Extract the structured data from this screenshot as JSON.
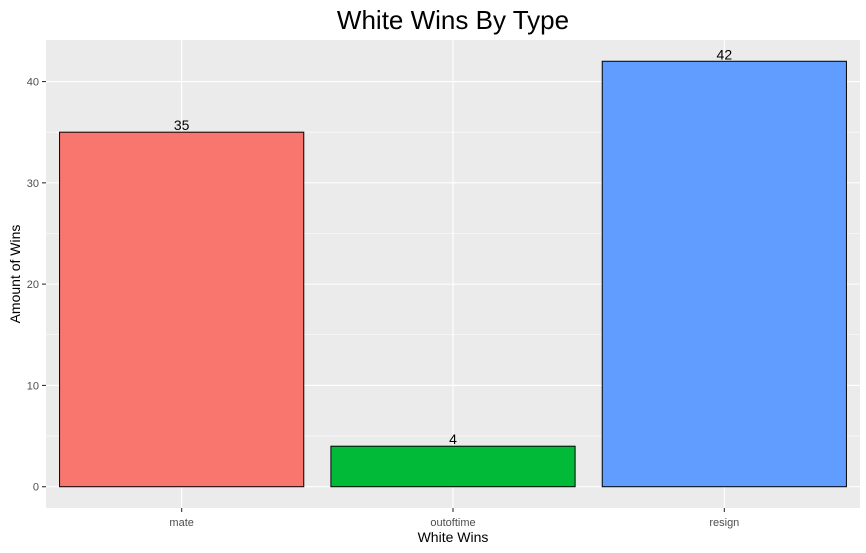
{
  "chart_data": {
    "type": "bar",
    "title": "White Wins By Type",
    "xlabel": "White Wins",
    "ylabel": "Amount of Wins",
    "categories": [
      "mate",
      "outoftime",
      "resign"
    ],
    "values": [
      35,
      4,
      42
    ],
    "colors": [
      "#F8766D",
      "#00BA38",
      "#619CFF"
    ],
    "bar_outline": "#000000",
    "data_labels": [
      "35",
      "4",
      "42"
    ],
    "y_ticks": [
      0,
      10,
      20,
      30,
      40
    ],
    "y_tick_labels": [
      "0",
      "10",
      "20",
      "30",
      "40"
    ],
    "ylim": [
      -2.1,
      44.1
    ],
    "grid": true,
    "legend": "none",
    "panel_background": "#EBEBEB",
    "grid_color": "#FFFFFF"
  }
}
